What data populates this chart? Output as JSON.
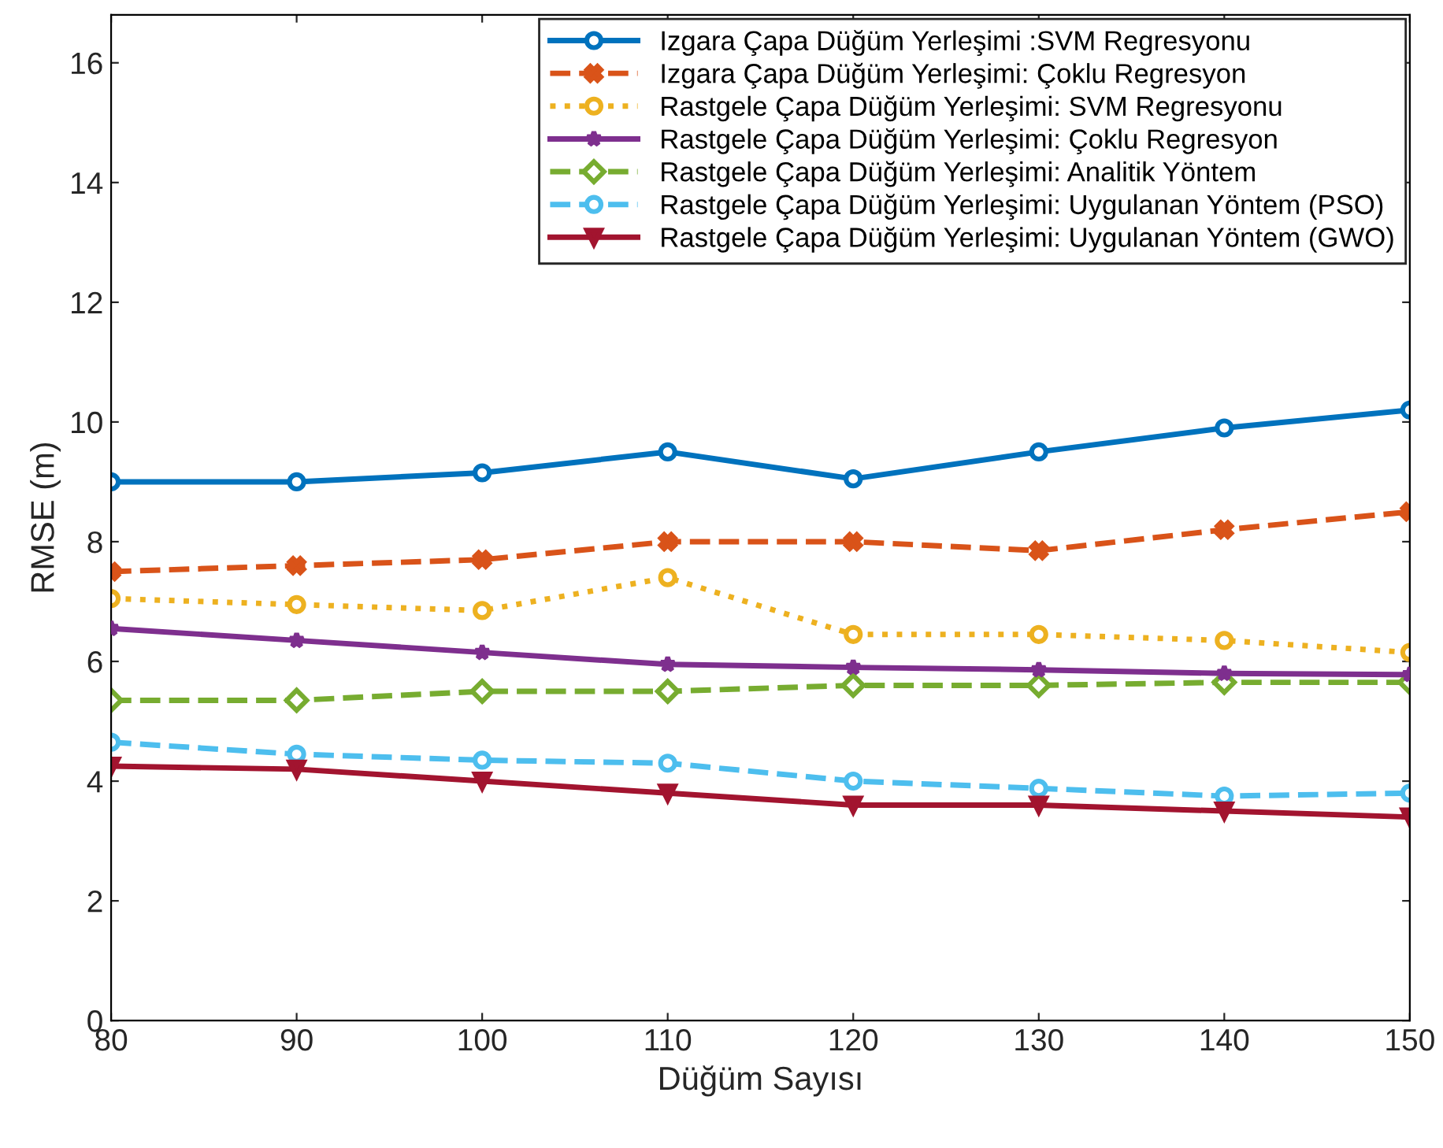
{
  "chart_data": {
    "type": "line",
    "xlabel": "Düğüm Sayısı",
    "ylabel": "RMSE (m)",
    "x": [
      80,
      90,
      100,
      110,
      120,
      130,
      140,
      150
    ],
    "xlim": [
      80,
      150
    ],
    "xticks": [
      80,
      90,
      100,
      110,
      120,
      130,
      140,
      150
    ],
    "ylim": [
      0,
      16.8
    ],
    "yticks": [
      0,
      2,
      4,
      6,
      8,
      10,
      12,
      14,
      16
    ],
    "grid": false,
    "legend": "top right",
    "series": [
      {
        "name": "Izgara Çapa Düğüm Yerleşimi :SVM Regresyonu",
        "color": "#0072bd",
        "marker": "circle",
        "line_style": "solid",
        "values": [
          9.0,
          9.0,
          9.15,
          9.5,
          9.05,
          9.5,
          9.9,
          10.2
        ]
      },
      {
        "name": "Izgara Çapa Düğüm Yerleşimi: Çoklu Regresyon",
        "color": "#d95319",
        "marker": "cross",
        "line_style": "dashed",
        "values": [
          7.5,
          7.6,
          7.7,
          8.0,
          8.0,
          7.85,
          8.2,
          8.5
        ]
      },
      {
        "name": "Rastgele Çapa Düğüm Yerleşimi: SVM Regresyonu",
        "color": "#edb120",
        "marker": "circle",
        "line_style": "dotted",
        "values": [
          7.05,
          6.95,
          6.85,
          7.4,
          6.45,
          6.45,
          6.35,
          6.15
        ]
      },
      {
        "name": "Rastgele Çapa Düğüm Yerleşimi: Çoklu Regresyon",
        "color": "#7e2f8e",
        "marker": "star",
        "line_style": "solid",
        "values": [
          6.55,
          6.35,
          6.15,
          5.95,
          5.9,
          5.86,
          5.8,
          5.78
        ]
      },
      {
        "name": "Rastgele Çapa Düğüm Yerleşimi: Analitik Yöntem",
        "color": "#77ac30",
        "marker": "diamond",
        "line_style": "dashed",
        "values": [
          5.35,
          5.35,
          5.5,
          5.5,
          5.6,
          5.6,
          5.65,
          5.65
        ]
      },
      {
        "name": "Rastgele Çapa Düğüm Yerleşimi: Uygulanan Yöntem (PSO)",
        "color": "#4dbeee",
        "marker": "circle",
        "line_style": "dashed",
        "values": [
          4.65,
          4.45,
          4.35,
          4.3,
          4.0,
          3.88,
          3.75,
          3.8
        ]
      },
      {
        "name": "Rastgele Çapa Düğüm Yerleşimi: Uygulanan Yöntem (GWO)",
        "color": "#a2142f",
        "marker": "triangle",
        "line_style": "solid",
        "values": [
          4.25,
          4.2,
          4.0,
          3.8,
          3.6,
          3.6,
          3.5,
          3.4
        ]
      }
    ]
  }
}
